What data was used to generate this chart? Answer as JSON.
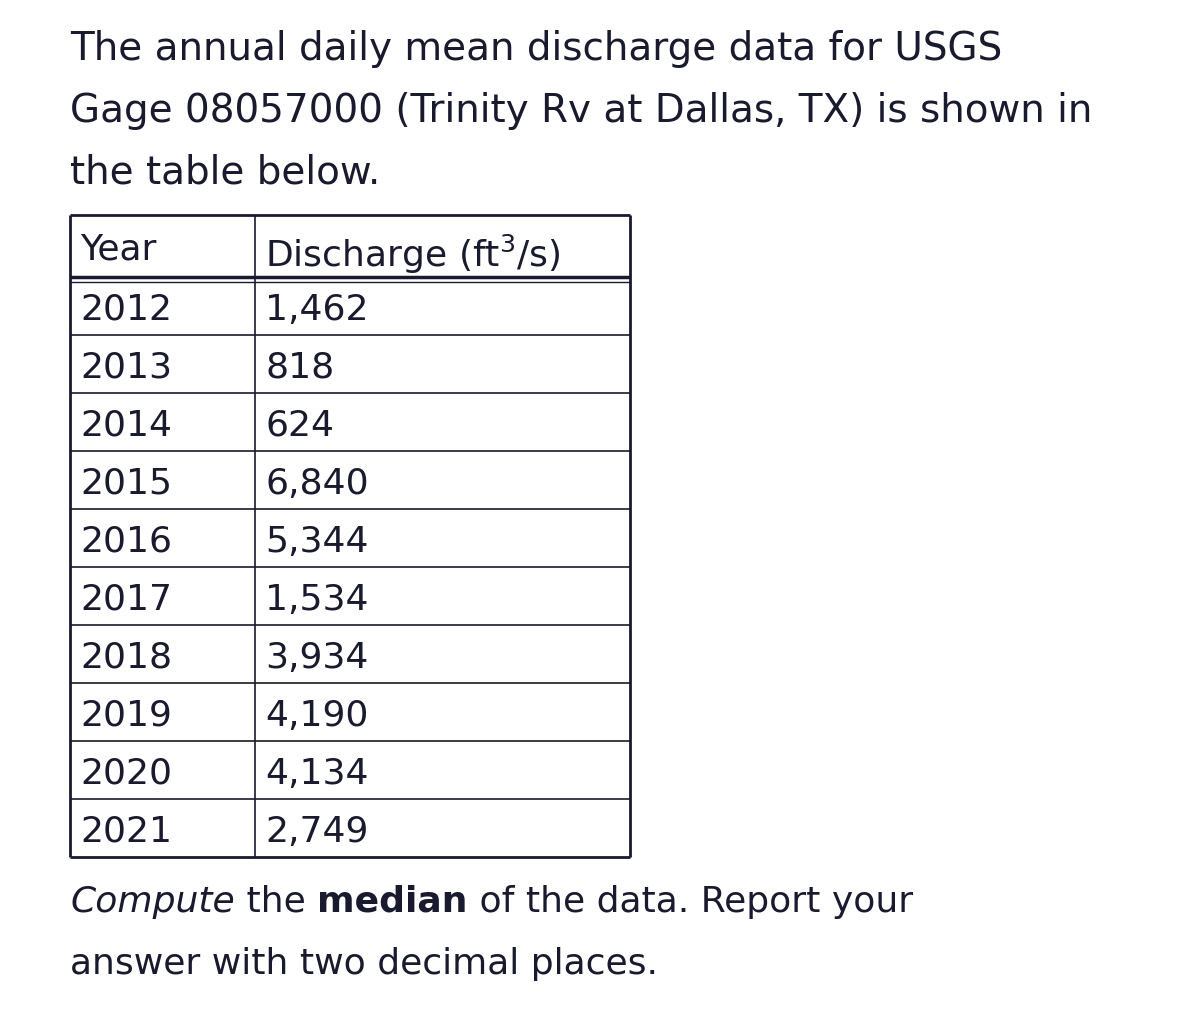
{
  "title_line1": "The annual daily mean discharge data for USGS",
  "title_line2": "Gage 08057000 (Trinity Rv at Dallas, TX) is shown in",
  "title_line3": "the table below.",
  "col_header_year": "Year",
  "col_header_discharge": "Discharge (ft$^3$/s)",
  "years": [
    "2012",
    "2013",
    "2014",
    "2015",
    "2016",
    "2017",
    "2018",
    "2019",
    "2020",
    "2021"
  ],
  "discharges": [
    "1,462",
    "818",
    "624",
    "6,840",
    "5,344",
    "1,534",
    "3,934",
    "4,190",
    "4,134",
    "2,749"
  ],
  "footer_parts": [
    {
      "text": "Compute",
      "style": "italic",
      "weight": "normal"
    },
    {
      "text": " the ",
      "style": "normal",
      "weight": "normal"
    },
    {
      "text": "median",
      "style": "normal",
      "weight": "bold"
    },
    {
      "text": " of the data. Report your",
      "style": "normal",
      "weight": "normal"
    }
  ],
  "footer_line2": "answer with two decimal places.",
  "bg_color": "#ffffff",
  "text_color": "#1a1a2e",
  "table_border_color": "#1a1a2e",
  "title_fontsize": 28,
  "table_fontsize": 26,
  "footer_fontsize": 26,
  "fig_width": 12.0,
  "fig_height": 10.23
}
